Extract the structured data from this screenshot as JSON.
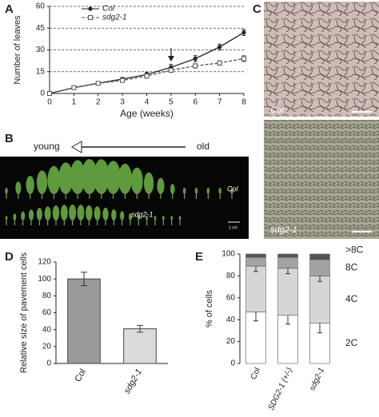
{
  "chart_data": [
    {
      "type": "line",
      "panel": "A",
      "xlabel": "Age (weeks)",
      "ylabel": "Number of leaves",
      "x": [
        0,
        1,
        2,
        3,
        4,
        5,
        6,
        7,
        8
      ],
      "xlim": [
        0,
        8
      ],
      "xticks": [
        0,
        1,
        2,
        3,
        4,
        5,
        6,
        7,
        8
      ],
      "ylim": [
        0,
        60
      ],
      "yticks": [
        0,
        15,
        30,
        45,
        60
      ],
      "grid": true,
      "legend": "top-left",
      "series": [
        {
          "name": "Col",
          "color": "#222222",
          "marker": "circle",
          "dashed": false,
          "values": [
            0,
            4,
            7,
            10,
            13,
            18,
            24,
            32,
            42
          ],
          "errors": [
            0,
            0.5,
            0.5,
            1,
            1.5,
            2,
            2,
            2,
            2
          ]
        },
        {
          "name": "sdg2-1",
          "color": "#555555",
          "marker": "square",
          "dashed": true,
          "values": [
            0,
            4,
            7,
            9,
            12,
            16,
            19,
            21,
            24
          ],
          "errors": [
            0,
            0.5,
            0.5,
            1,
            1.5,
            1.5,
            1.5,
            1.5,
            2
          ]
        }
      ]
    },
    {
      "type": "bar",
      "panel": "D",
      "ylabel": "Relative size of pavement cells",
      "categories": [
        "Col",
        "sdg2-1"
      ],
      "values": [
        100,
        41
      ],
      "errors": [
        8,
        4
      ],
      "colors": [
        "#9a9a9a",
        "#dcdcdc"
      ],
      "ylim": [
        0,
        120
      ],
      "yticks": [
        0,
        20,
        40,
        60,
        80,
        100,
        120
      ]
    },
    {
      "type": "stacked-bar",
      "panel": "E",
      "ylabel": "% of cells",
      "categories": [
        "Col",
        "SDG2-1 (+/-)",
        "sdg2-1"
      ],
      "ylim": [
        0,
        100
      ],
      "yticks": [
        0,
        20,
        40,
        60,
        80,
        100
      ],
      "legend": "right",
      "series": [
        {
          "name": "2C",
          "color": "#ffffff",
          "values": [
            47,
            44,
            37
          ],
          "errors": [
            8,
            8,
            9
          ]
        },
        {
          "name": "4C",
          "color": "#d6d6d6",
          "values": [
            42,
            43,
            43
          ],
          "errors": [
            5,
            5,
            5
          ]
        },
        {
          "name": "8C",
          "color": "#a3a3a3",
          "values": [
            8,
            10,
            15
          ]
        },
        {
          "name": ">8C",
          "color": "#555555",
          "values": [
            3,
            3,
            5
          ]
        }
      ]
    }
  ],
  "images": [
    {
      "panel": "B",
      "left_label": "young",
      "right_label": "old",
      "row_labels": [
        "Col",
        "sdg2-1"
      ],
      "scale_label": "1 cm"
    },
    {
      "panel": "C",
      "row_labels": [
        "Col",
        "sdg2-1"
      ]
    }
  ]
}
